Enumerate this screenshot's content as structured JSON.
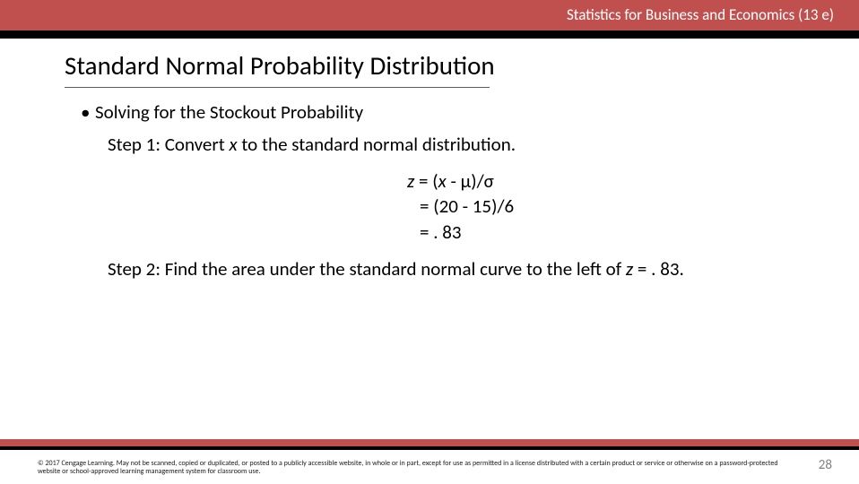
{
  "header": {
    "book_title": "Statistics for Business and Economics (13 e)"
  },
  "title": "Standard Normal Probability Distribution",
  "bullet": {
    "marker": "•",
    "text": "Solving for the Stockout Probability"
  },
  "step1": {
    "prefix": "Step 1:  Convert ",
    "var": "x",
    "suffix": " to the standard normal distribution."
  },
  "equations": {
    "line1_pre": "z",
    "line1_post": " = (",
    "line1_x": "x",
    "line1_end": " - μ)/σ",
    "line2": "= (20 - 15)/6",
    "line3": "= . 83"
  },
  "step2": {
    "prefix": "Step 2:  Find the area under the standard normal curve to the left of ",
    "var": "z",
    "suffix": " = . 83."
  },
  "footer": {
    "copyright": "© 2017 Cengage Learning.  May not be scanned, copied or duplicated, or posted to a publicly accessible website, in whole or in part, except for use as permitted in a license distributed with a certain product or service or otherwise on a password-protected website or school-approved learning management system for classroom use.",
    "page_number": "28"
  },
  "colors": {
    "red_bar": "#c0504d",
    "black_bar": "#000000",
    "title_underline": "#5a5a5a",
    "page_num_color": "#808080"
  }
}
